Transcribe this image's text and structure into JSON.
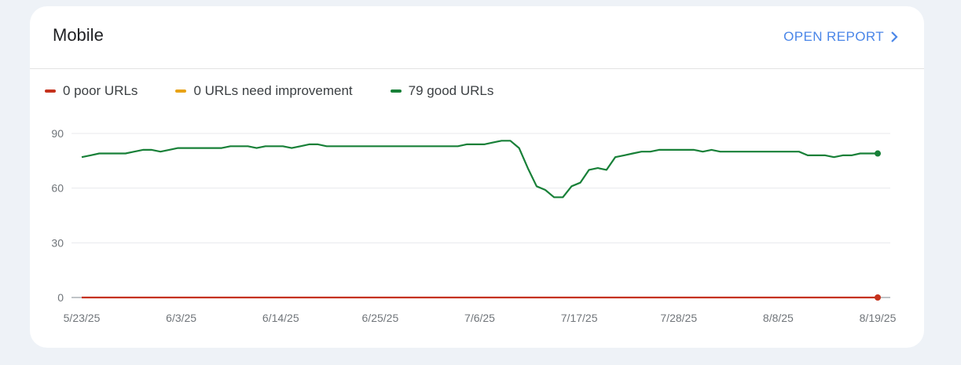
{
  "card": {
    "title": "Mobile",
    "open_report_label": "OPEN REPORT"
  },
  "legend": [
    {
      "label": "0 poor URLs",
      "color": "#c5321d"
    },
    {
      "label": "0 URLs need improvement",
      "color": "#e8a317"
    },
    {
      "label": "79 good URLs",
      "color": "#188038"
    }
  ],
  "chart_data": {
    "type": "line",
    "grid": true,
    "x_start": "5/23/25",
    "x_ticks": [
      "5/23/25",
      "6/3/25",
      "6/14/25",
      "6/25/25",
      "7/6/25",
      "7/17/25",
      "7/28/25",
      "8/8/25",
      "8/19/25"
    ],
    "y_ticks": [
      0,
      30,
      60,
      90
    ],
    "ylim": [
      0,
      90
    ],
    "series": [
      {
        "name": "good URLs",
        "color": "#188038",
        "values": [
          77,
          78,
          79,
          79,
          79,
          79,
          80,
          81,
          81,
          80,
          81,
          82,
          82,
          82,
          82,
          82,
          82,
          83,
          83,
          83,
          82,
          83,
          83,
          83,
          82,
          83,
          84,
          84,
          83,
          83,
          83,
          83,
          83,
          83,
          83,
          83,
          83,
          83,
          83,
          83,
          83,
          83,
          83,
          83,
          84,
          84,
          84,
          85,
          86,
          86,
          82,
          71,
          61,
          59,
          55,
          55,
          61,
          63,
          70,
          71,
          70,
          77,
          78,
          79,
          80,
          80,
          81,
          81,
          81,
          81,
          81,
          80,
          81,
          80,
          80,
          80,
          80,
          80,
          80,
          80,
          80,
          80,
          80,
          78,
          78,
          78,
          77,
          78,
          78,
          79,
          79,
          79
        ]
      },
      {
        "name": "poor URLs",
        "color": "#c5321d",
        "values": [
          0,
          0,
          0,
          0,
          0,
          0,
          0,
          0,
          0,
          0,
          0,
          0,
          0,
          0,
          0,
          0,
          0,
          0,
          0,
          0,
          0,
          0,
          0,
          0,
          0,
          0,
          0,
          0,
          0,
          0,
          0,
          0,
          0,
          0,
          0,
          0,
          0,
          0,
          0,
          0,
          0,
          0,
          0,
          0,
          0,
          0,
          0,
          0,
          0,
          0,
          0,
          0,
          0,
          0,
          0,
          0,
          0,
          0,
          0,
          0,
          0,
          0,
          0,
          0,
          0,
          0,
          0,
          0,
          0,
          0,
          0,
          0,
          0,
          0,
          0,
          0,
          0,
          0,
          0,
          0,
          0,
          0,
          0,
          0,
          0,
          0,
          0,
          0,
          0,
          0,
          0,
          0
        ]
      }
    ]
  }
}
